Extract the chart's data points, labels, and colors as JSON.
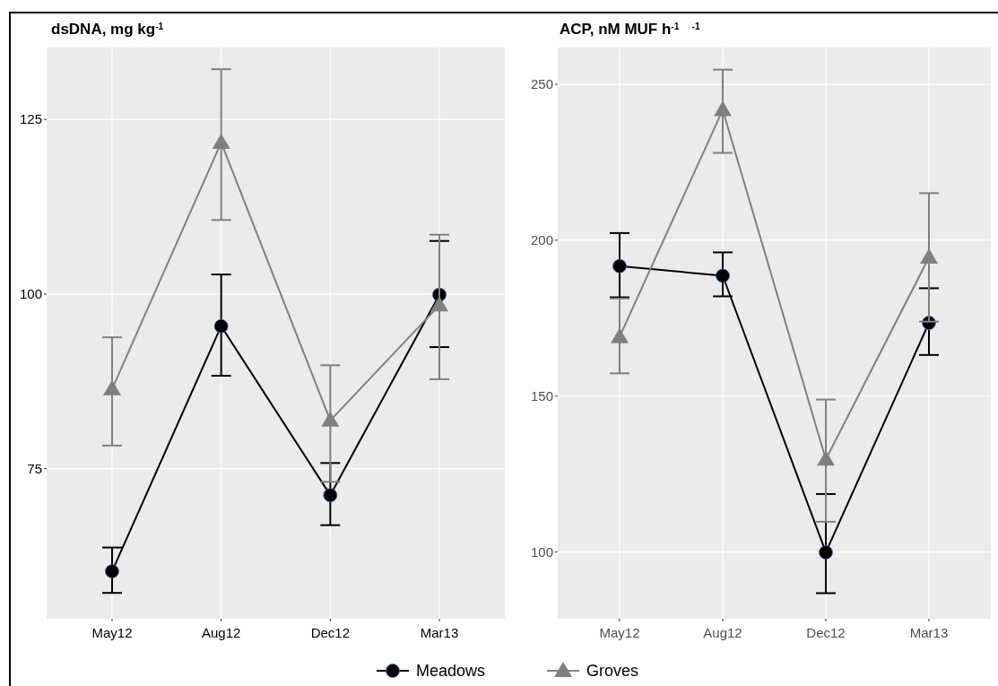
{
  "chart_data": [
    {
      "type": "line",
      "title": "dsDNA, mg kg$^{-1}$",
      "categories": [
        "May12",
        "Aug12",
        "Dec12",
        "Mar13"
      ],
      "ylim": [
        53.5,
        135.3
      ],
      "yticks": [
        75,
        100,
        125
      ],
      "grid": true,
      "legend": "bottom",
      "line_style": "solid",
      "series": [
        {
          "name": "Meadows",
          "color": "#000000",
          "marker": "circle",
          "values": [
            60.3,
            95.4,
            71.2,
            99.9
          ],
          "errors": [
            [
              57.2,
              63.7
            ],
            [
              88.3,
              102.8
            ],
            [
              66.9,
              75.8
            ],
            [
              92.4,
              107.6
            ]
          ]
        },
        {
          "name": "Groves",
          "color": "#808080",
          "marker": "triangle",
          "values": [
            86.4,
            121.7,
            81.9,
            98.4
          ],
          "errors": [
            [
              78.3,
              93.8
            ],
            [
              110.6,
              132.2
            ],
            [
              73.1,
              89.8
            ],
            [
              87.8,
              108.5
            ]
          ]
        }
      ]
    },
    {
      "type": "line",
      "title": "ACP, nM MUF h$^{-1}$   $^{-1}$",
      "categories": [
        "May12",
        "Aug12",
        "Dec12",
        "Mar13"
      ],
      "ylim": [
        78.6,
        261.8
      ],
      "yticks": [
        100,
        150,
        200,
        250
      ],
      "grid": true,
      "line_style": "solid",
      "series": [
        {
          "color": "#000000",
          "marker": "circle",
          "values": [
            191.7,
            188.6,
            99.9,
            173.5
          ],
          "errors": [
            [
              181.7,
              202.3
            ],
            [
              182.0,
              196.1
            ],
            [
              86.8,
              118.6
            ],
            [
              163.2,
              184.6
            ]
          ]
        },
        {
          "color": "#808080",
          "marker": "triangle",
          "values": [
            169.0,
            241.8,
            129.7,
            194.5
          ],
          "errors": [
            [
              157.3,
              181.3
            ],
            [
              228.0,
              254.7
            ],
            [
              109.7,
              148.9
            ],
            [
              173.9,
              215.1
            ]
          ]
        }
      ]
    }
  ]
}
